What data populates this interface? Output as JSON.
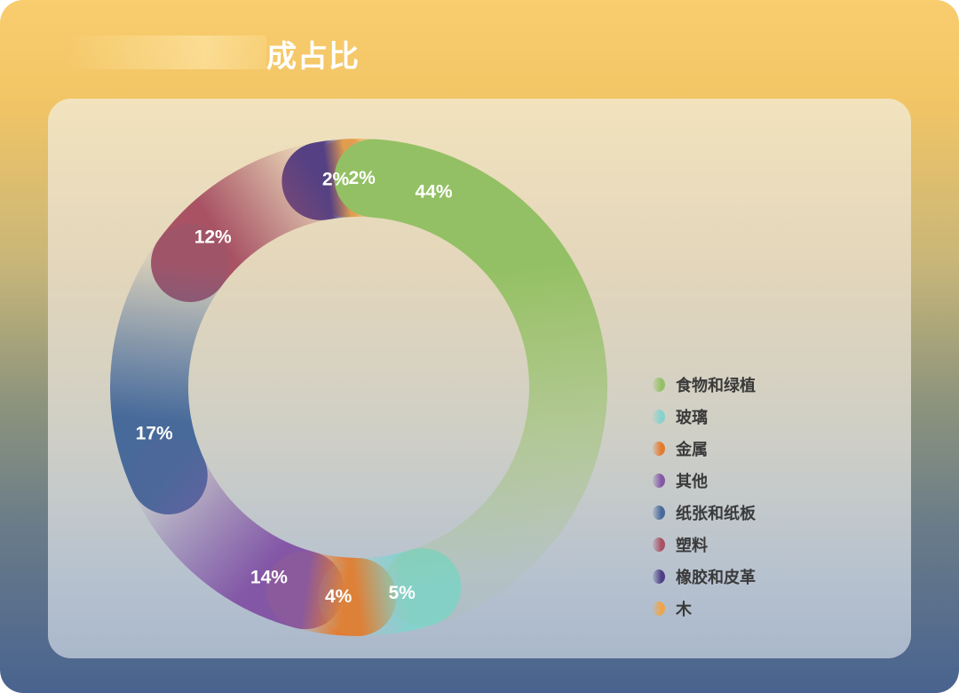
{
  "title": "成占比",
  "chart_data": {
    "type": "pie",
    "title": "成占比",
    "legend_position": "right",
    "series": [
      {
        "name": "食物和绿植",
        "value": 44,
        "label": "44%",
        "color": "#93c064"
      },
      {
        "name": "玻璃",
        "value": 5,
        "label": "5%",
        "color": "#84d2ce"
      },
      {
        "name": "金属",
        "value": 4,
        "label": "4%",
        "color": "#e57a2c"
      },
      {
        "name": "其他",
        "value": 14,
        "label": "14%",
        "color": "#8357a6"
      },
      {
        "name": "纸张和纸板",
        "value": 17,
        "label": "17%",
        "color": "#476a9a"
      },
      {
        "name": "塑料",
        "value": 12,
        "label": "12%",
        "color": "#a85264"
      },
      {
        "name": "橡胶和皮革",
        "value": 2,
        "label": "2%",
        "color": "#4d3f86"
      },
      {
        "name": "木",
        "value": 2,
        "label": "2%",
        "color": "#eea54a"
      }
    ]
  }
}
